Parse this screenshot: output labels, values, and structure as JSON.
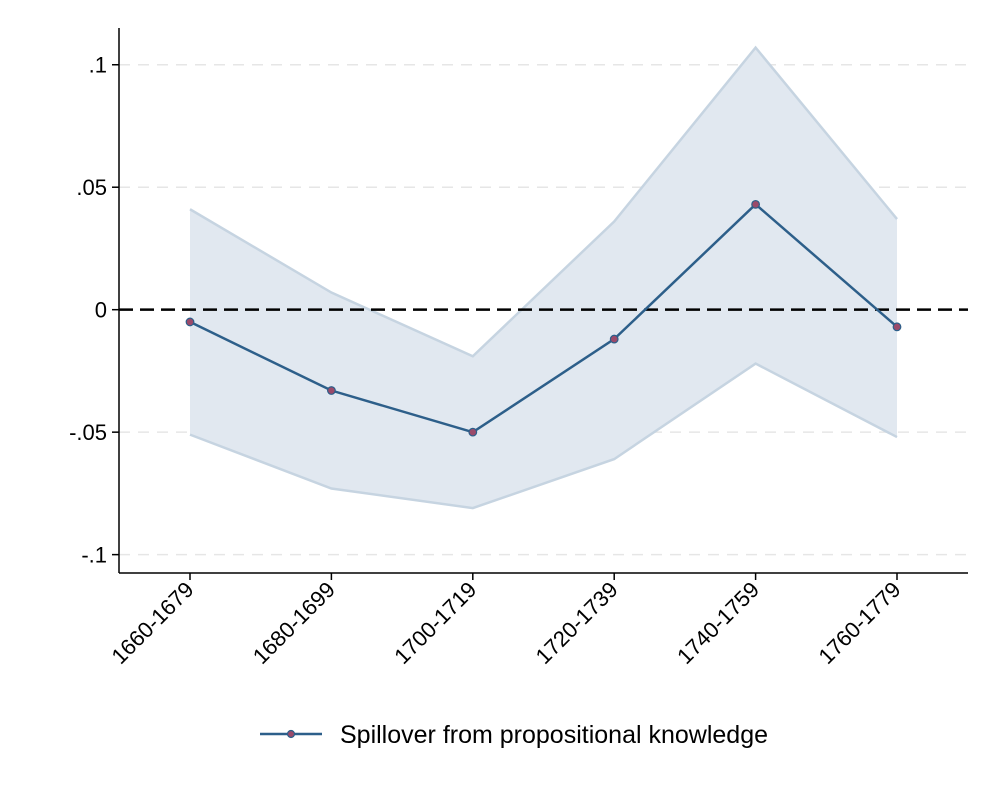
{
  "chart_data": {
    "type": "line",
    "title": "",
    "xlabel": "",
    "ylabel": "",
    "categories": [
      "1660-1679",
      "1680-1699",
      "1700-1719",
      "1720-1739",
      "1740-1759",
      "1760-1779"
    ],
    "series": [
      {
        "name": "Spillover from propositional knowledge",
        "values": [
          -0.005,
          -0.033,
          -0.05,
          -0.012,
          0.043,
          -0.007
        ],
        "ci_upper": [
          0.041,
          0.007,
          -0.019,
          0.036,
          0.107,
          0.037
        ],
        "ci_lower": [
          -0.051,
          -0.073,
          -0.081,
          -0.061,
          -0.022,
          -0.052
        ]
      }
    ],
    "ylim": [
      -0.1075,
      0.115
    ],
    "y_ticks": [
      0.1,
      0.05,
      0,
      -0.05,
      -0.1
    ],
    "y_tick_labels": [
      ".1",
      ".05",
      "0",
      "-.05",
      "-.1"
    ],
    "reference_line": 0,
    "grid": true,
    "legend_position": "bottom",
    "colors": {
      "line": "#2d5f8a",
      "marker": "#9b4a6a",
      "ci_fill": "#e1e8f0",
      "ci_edge": "#c6d4e1",
      "grid": "#e6e6e6",
      "zero_line": "#000000"
    }
  }
}
